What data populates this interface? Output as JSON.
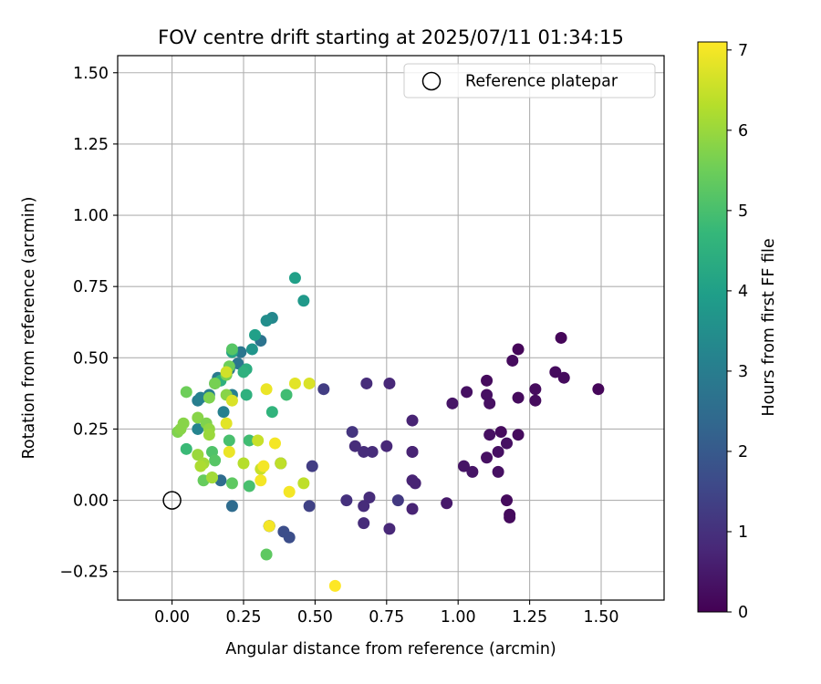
{
  "chart_data": {
    "type": "scatter",
    "title": "FOV centre drift starting at 2025/07/11 01:34:15",
    "xlabel": "Angular distance from reference (arcmin)",
    "ylabel": "Rotation from reference (arcmin)",
    "xlim": [
      -0.19,
      1.72
    ],
    "ylim": [
      -0.35,
      1.56
    ],
    "xticks": [
      "0.00",
      "0.25",
      "0.50",
      "0.75",
      "1.00",
      "1.25",
      "1.50"
    ],
    "xtick_values": [
      0,
      0.25,
      0.5,
      0.75,
      1.0,
      1.25,
      1.5
    ],
    "yticks": [
      "−0.25",
      "0.00",
      "0.25",
      "0.50",
      "0.75",
      "1.00",
      "1.25",
      "1.50"
    ],
    "ytick_values": [
      -0.25,
      0,
      0.25,
      0.5,
      0.75,
      1.0,
      1.25,
      1.5
    ],
    "grid": true,
    "legend": {
      "position": "top-right",
      "entries": [
        "Reference platepar"
      ]
    },
    "reference_point": {
      "x": 0,
      "y": 0,
      "label": "Reference platepar"
    },
    "colormap": "viridis",
    "colorbar": {
      "label": "Hours from first FF file",
      "range": [
        0,
        7.1
      ],
      "ticks": [
        "0",
        "1",
        "2",
        "3",
        "4",
        "5",
        "6",
        "7"
      ],
      "tick_values": [
        0,
        1,
        2,
        3,
        4,
        5,
        6,
        7
      ]
    },
    "points": [
      {
        "x": 1.36,
        "y": 0.57,
        "h": 0.1
      },
      {
        "x": 1.21,
        "y": 0.53,
        "h": 0.1
      },
      {
        "x": 1.19,
        "y": 0.49,
        "h": 0.2
      },
      {
        "x": 1.34,
        "y": 0.45,
        "h": 0.2
      },
      {
        "x": 1.37,
        "y": 0.43,
        "h": 0.2
      },
      {
        "x": 1.1,
        "y": 0.42,
        "h": 0.2
      },
      {
        "x": 1.49,
        "y": 0.39,
        "h": 0.1
      },
      {
        "x": 1.03,
        "y": 0.38,
        "h": 0.3
      },
      {
        "x": 1.27,
        "y": 0.39,
        "h": 0.2
      },
      {
        "x": 1.1,
        "y": 0.37,
        "h": 0.3
      },
      {
        "x": 1.21,
        "y": 0.36,
        "h": 0.2
      },
      {
        "x": 1.27,
        "y": 0.35,
        "h": 0.2
      },
      {
        "x": 1.11,
        "y": 0.34,
        "h": 0.3
      },
      {
        "x": 0.98,
        "y": 0.34,
        "h": 0.4
      },
      {
        "x": 1.15,
        "y": 0.24,
        "h": 0.2
      },
      {
        "x": 1.11,
        "y": 0.23,
        "h": 0.3
      },
      {
        "x": 1.21,
        "y": 0.23,
        "h": 0.2
      },
      {
        "x": 1.17,
        "y": 0.2,
        "h": 0.3
      },
      {
        "x": 1.14,
        "y": 0.17,
        "h": 0.3
      },
      {
        "x": 1.1,
        "y": 0.15,
        "h": 0.3
      },
      {
        "x": 1.02,
        "y": 0.12,
        "h": 0.4
      },
      {
        "x": 1.05,
        "y": 0.1,
        "h": 0.4
      },
      {
        "x": 1.14,
        "y": 0.1,
        "h": 0.3
      },
      {
        "x": 1.17,
        "y": 0.0,
        "h": 0.2
      },
      {
        "x": 1.18,
        "y": -0.05,
        "h": 0.2
      },
      {
        "x": 1.18,
        "y": -0.06,
        "h": 0.2
      },
      {
        "x": 0.96,
        "y": -0.01,
        "h": 0.5
      },
      {
        "x": 0.84,
        "y": 0.28,
        "h": 0.7
      },
      {
        "x": 0.84,
        "y": 0.17,
        "h": 0.7
      },
      {
        "x": 0.84,
        "y": 0.17,
        "h": 0.7
      },
      {
        "x": 0.84,
        "y": 0.07,
        "h": 0.7
      },
      {
        "x": 0.85,
        "y": 0.06,
        "h": 0.7
      },
      {
        "x": 0.84,
        "y": -0.03,
        "h": 0.7
      },
      {
        "x": 0.76,
        "y": 0.41,
        "h": 0.8
      },
      {
        "x": 0.68,
        "y": 0.41,
        "h": 0.9
      },
      {
        "x": 0.75,
        "y": 0.19,
        "h": 0.8
      },
      {
        "x": 0.7,
        "y": 0.17,
        "h": 0.9
      },
      {
        "x": 0.67,
        "y": 0.17,
        "h": 0.9
      },
      {
        "x": 0.64,
        "y": 0.19,
        "h": 0.9
      },
      {
        "x": 0.63,
        "y": 0.24,
        "h": 1.1
      },
      {
        "x": 0.69,
        "y": 0.01,
        "h": 0.9
      },
      {
        "x": 0.67,
        "y": -0.02,
        "h": 0.9
      },
      {
        "x": 0.61,
        "y": 0.0,
        "h": 1.0
      },
      {
        "x": 0.79,
        "y": 0.0,
        "h": 1.2
      },
      {
        "x": 0.67,
        "y": -0.08,
        "h": 0.9
      },
      {
        "x": 0.76,
        "y": -0.1,
        "h": 0.8
      },
      {
        "x": 0.53,
        "y": 0.39,
        "h": 1.3
      },
      {
        "x": 0.49,
        "y": 0.12,
        "h": 1.3
      },
      {
        "x": 0.48,
        "y": -0.02,
        "h": 1.4
      },
      {
        "x": 0.38,
        "y": 0.13,
        "h": 1.5
      },
      {
        "x": 0.39,
        "y": -0.11,
        "h": 1.7
      },
      {
        "x": 0.41,
        "y": -0.13,
        "h": 1.7
      },
      {
        "x": 0.34,
        "y": -0.09,
        "h": 2.0
      },
      {
        "x": 0.34,
        "y": -0.09,
        "h": 2.1
      },
      {
        "x": 0.21,
        "y": -0.02,
        "h": 2.5
      },
      {
        "x": 0.17,
        "y": 0.07,
        "h": 2.5
      },
      {
        "x": 0.31,
        "y": 0.56,
        "h": 2.7
      },
      {
        "x": 0.24,
        "y": 0.52,
        "h": 2.8
      },
      {
        "x": 0.23,
        "y": 0.48,
        "h": 2.8
      },
      {
        "x": 0.2,
        "y": 0.46,
        "h": 2.8
      },
      {
        "x": 0.15,
        "y": 0.41,
        "h": 2.9
      },
      {
        "x": 0.16,
        "y": 0.43,
        "h": 2.9
      },
      {
        "x": 0.13,
        "y": 0.37,
        "h": 3.0
      },
      {
        "x": 0.09,
        "y": 0.35,
        "h": 3.0
      },
      {
        "x": 0.1,
        "y": 0.36,
        "h": 3.1
      },
      {
        "x": 0.21,
        "y": 0.37,
        "h": 3.1
      },
      {
        "x": 0.18,
        "y": 0.31,
        "h": 3.1
      },
      {
        "x": 0.09,
        "y": 0.25,
        "h": 3.2
      },
      {
        "x": 0.35,
        "y": 0.64,
        "h": 3.3
      },
      {
        "x": 0.33,
        "y": 0.63,
        "h": 3.5
      },
      {
        "x": 0.28,
        "y": 0.53,
        "h": 3.7
      },
      {
        "x": 0.46,
        "y": 0.7,
        "h": 3.8
      },
      {
        "x": 0.43,
        "y": 0.78,
        "h": 4.0
      },
      {
        "x": 0.29,
        "y": 0.58,
        "h": 4.0
      },
      {
        "x": 0.21,
        "y": 0.52,
        "h": 4.2
      },
      {
        "x": 0.26,
        "y": 0.46,
        "h": 4.4
      },
      {
        "x": 0.25,
        "y": 0.45,
        "h": 4.5
      },
      {
        "x": 0.17,
        "y": 0.42,
        "h": 4.5
      },
      {
        "x": 0.26,
        "y": 0.37,
        "h": 4.5
      },
      {
        "x": 0.35,
        "y": 0.31,
        "h": 4.6
      },
      {
        "x": 0.4,
        "y": 0.37,
        "h": 4.9
      },
      {
        "x": 0.27,
        "y": 0.21,
        "h": 4.9
      },
      {
        "x": 0.2,
        "y": 0.21,
        "h": 5.0
      },
      {
        "x": 0.05,
        "y": 0.18,
        "h": 4.8
      },
      {
        "x": 0.14,
        "y": 0.17,
        "h": 5.1
      },
      {
        "x": 0.15,
        "y": 0.14,
        "h": 5.2
      },
      {
        "x": 0.21,
        "y": 0.06,
        "h": 5.3
      },
      {
        "x": 0.27,
        "y": 0.05,
        "h": 5.0
      },
      {
        "x": 0.33,
        "y": -0.19,
        "h": 5.3
      },
      {
        "x": 0.11,
        "y": 0.07,
        "h": 5.4
      },
      {
        "x": 0.14,
        "y": 0.08,
        "h": 5.4
      },
      {
        "x": 0.21,
        "y": 0.53,
        "h": 5.2
      },
      {
        "x": 0.2,
        "y": 0.47,
        "h": 5.5
      },
      {
        "x": 0.19,
        "y": 0.44,
        "h": 5.6
      },
      {
        "x": 0.15,
        "y": 0.41,
        "h": 5.6
      },
      {
        "x": 0.05,
        "y": 0.38,
        "h": 5.5
      },
      {
        "x": 0.13,
        "y": 0.36,
        "h": 5.7
      },
      {
        "x": 0.19,
        "y": 0.37,
        "h": 5.8
      },
      {
        "x": 0.09,
        "y": 0.29,
        "h": 5.8
      },
      {
        "x": 0.12,
        "y": 0.27,
        "h": 5.7
      },
      {
        "x": 0.04,
        "y": 0.27,
        "h": 5.8
      },
      {
        "x": 0.13,
        "y": 0.25,
        "h": 5.9
      },
      {
        "x": 0.02,
        "y": 0.24,
        "h": 5.7
      },
      {
        "x": 0.03,
        "y": 0.25,
        "h": 5.8
      },
      {
        "x": 0.13,
        "y": 0.23,
        "h": 6.0
      },
      {
        "x": 0.09,
        "y": 0.16,
        "h": 6.0
      },
      {
        "x": 0.11,
        "y": 0.13,
        "h": 6.1
      },
      {
        "x": 0.1,
        "y": 0.12,
        "h": 6.2
      },
      {
        "x": 0.25,
        "y": 0.13,
        "h": 6.3
      },
      {
        "x": 0.14,
        "y": 0.08,
        "h": 6.1
      },
      {
        "x": 0.38,
        "y": 0.13,
        "h": 6.4
      },
      {
        "x": 0.46,
        "y": 0.06,
        "h": 6.4
      },
      {
        "x": 0.3,
        "y": 0.21,
        "h": 6.5
      },
      {
        "x": 0.31,
        "y": 0.11,
        "h": 6.5
      },
      {
        "x": 0.19,
        "y": 0.45,
        "h": 6.6
      },
      {
        "x": 0.21,
        "y": 0.35,
        "h": 6.7
      },
      {
        "x": 0.19,
        "y": 0.27,
        "h": 6.8
      },
      {
        "x": 0.2,
        "y": 0.17,
        "h": 6.9
      },
      {
        "x": 0.43,
        "y": 0.41,
        "h": 6.8
      },
      {
        "x": 0.48,
        "y": 0.41,
        "h": 6.7
      },
      {
        "x": 0.33,
        "y": 0.39,
        "h": 6.9
      },
      {
        "x": 0.36,
        "y": 0.2,
        "h": 7.0
      },
      {
        "x": 0.32,
        "y": 0.12,
        "h": 7.0
      },
      {
        "x": 0.31,
        "y": 0.07,
        "h": 7.0
      },
      {
        "x": 0.41,
        "y": 0.03,
        "h": 7.0
      },
      {
        "x": 0.34,
        "y": -0.09,
        "h": 7.0
      },
      {
        "x": 0.57,
        "y": -0.3,
        "h": 7.1
      }
    ]
  }
}
